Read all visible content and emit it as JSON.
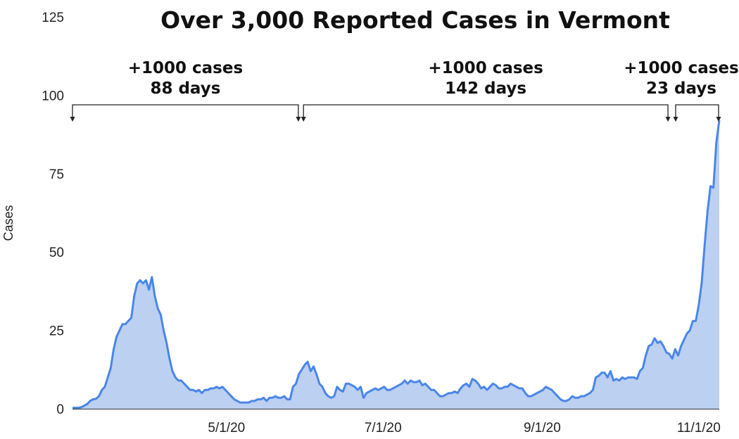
{
  "chart_data": {
    "type": "area",
    "title": "Over 3,000 Reported Cases in Vermont",
    "xlabel": "",
    "ylabel": "Cases",
    "ylim": [
      0,
      125
    ],
    "yticks": [
      0,
      25,
      50,
      75,
      100,
      125
    ],
    "x_ticks": [
      {
        "label": "5/1/20",
        "day": 60
      },
      {
        "label": "7/1/20",
        "day": 121
      },
      {
        "label": "9/1/20",
        "day": 183
      },
      {
        "label": "11/1/20",
        "day": 244
      }
    ],
    "x_domain_days": [
      0,
      252
    ],
    "start_date": "3/2/20",
    "series": [
      {
        "name": "Cases",
        "color": "#4a86e8",
        "fill": "#bcd0f2",
        "values": [
          0.3,
          0.3,
          0.3,
          0.5,
          1,
          1.5,
          2.5,
          3,
          3.2,
          4,
          6,
          7,
          10,
          13,
          19,
          23,
          25,
          27,
          27,
          28,
          29,
          36,
          40,
          41,
          40,
          41,
          38,
          42,
          36,
          32,
          30,
          25,
          21,
          16,
          12,
          10,
          9,
          9,
          8,
          7,
          6,
          6,
          5.5,
          6,
          5,
          6,
          6,
          6.5,
          6.5,
          7,
          6.5,
          7,
          6,
          5,
          4,
          3,
          2.5,
          2,
          2,
          2,
          2,
          2.5,
          2.5,
          3,
          3,
          3.5,
          2.5,
          3.5,
          3.5,
          4,
          3.5,
          3.5,
          4,
          3,
          3,
          7,
          8,
          11,
          12.5,
          14,
          15,
          12,
          13.5,
          11,
          8,
          7,
          5,
          4,
          3.5,
          4,
          7,
          6,
          5.5,
          8,
          8,
          7.5,
          7,
          6,
          7,
          3.5,
          5,
          5.5,
          6,
          6.5,
          6,
          6.5,
          7,
          6,
          6,
          6.5,
          7,
          7.5,
          8,
          9,
          8,
          9,
          8.5,
          8.5,
          9,
          7.5,
          8,
          7,
          6,
          6,
          5,
          4,
          4,
          4.5,
          5,
          5,
          5.5,
          5,
          6.5,
          7.5,
          8,
          7,
          9.5,
          9,
          8,
          6.5,
          7,
          6,
          7,
          8,
          7.5,
          6.5,
          6.5,
          7,
          7,
          8,
          7.5,
          7,
          6.5,
          6.5,
          5,
          4,
          4,
          4.5,
          5,
          5.5,
          6,
          7,
          6.5,
          6,
          5,
          4,
          3,
          2.5,
          2.5,
          3,
          4,
          3.5,
          3.5,
          4,
          4,
          4.5,
          5,
          6,
          10,
          10.5,
          11.5,
          11.5,
          10,
          12,
          9,
          9.5,
          9,
          10,
          9.5,
          10,
          10,
          10,
          9.5,
          12,
          13,
          17,
          20,
          20.5,
          22.5,
          21,
          21.5,
          20,
          18,
          17.5,
          16,
          19,
          17,
          20,
          22,
          24,
          25,
          28,
          28,
          33,
          40,
          52,
          63,
          71,
          70.5,
          85,
          92
        ]
      }
    ],
    "annotations": [
      {
        "line1": "+1000 cases",
        "line2": "88 days",
        "from_day": 0,
        "to_day": 88
      },
      {
        "line1": "+1000 cases",
        "line2": "142 days",
        "from_day": 90,
        "to_day": 232
      },
      {
        "line1": "+1000 cases",
        "line2": "23 days",
        "from_day": 235,
        "to_day": 258
      }
    ]
  }
}
